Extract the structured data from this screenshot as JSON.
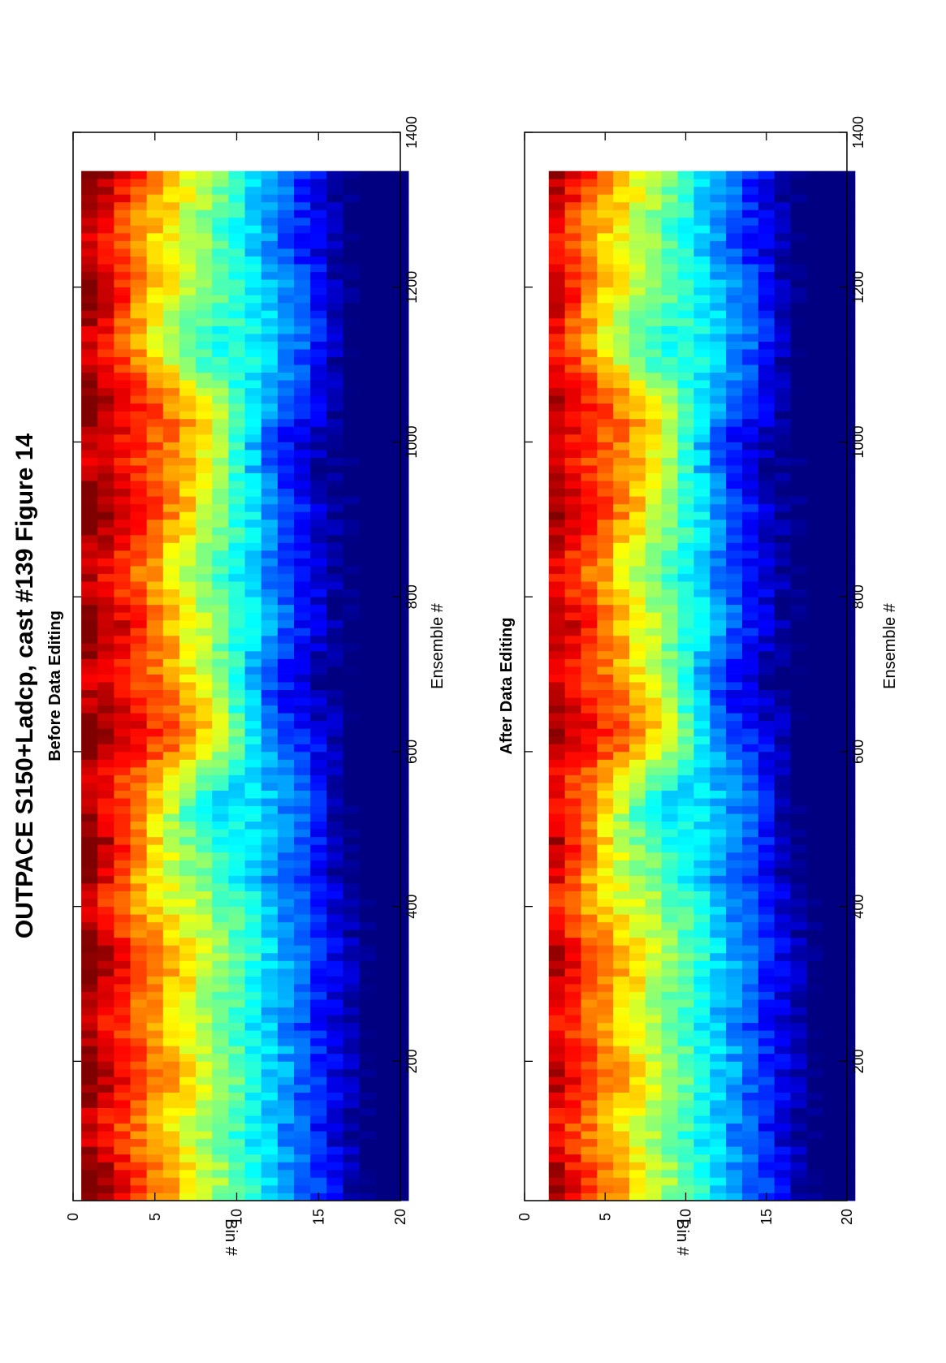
{
  "figure": {
    "title": "OUTPACE S150+Ladcp, cast #139  Figure 14"
  },
  "chart_data": [
    {
      "type": "heatmap",
      "title": "Before Data Editing",
      "xlabel": "Ensemble #",
      "ylabel": "Bin #",
      "xlim": [
        20,
        1400
      ],
      "ylim": [
        0,
        20
      ],
      "x_ticks": [
        200,
        400,
        600,
        800,
        1000,
        1200,
        1400
      ],
      "y_ticks": [
        0,
        5,
        10,
        15,
        20
      ],
      "x_range": [
        20,
        1350
      ],
      "bins": [
        1,
        20
      ],
      "first_bin_masked": false,
      "colormap": "jet",
      "grid": false,
      "orientation": "page rotated 90 degrees counter-clockwise"
    },
    {
      "type": "heatmap",
      "title": "After Data Editing",
      "xlabel": "Ensemble #",
      "ylabel": "Bin #",
      "xlim": [
        20,
        1400
      ],
      "ylim": [
        0,
        20
      ],
      "x_ticks": [
        200,
        400,
        600,
        800,
        1000,
        1200,
        1400
      ],
      "y_ticks": [
        0,
        5,
        10,
        15,
        20
      ],
      "x_range": [
        20,
        1350
      ],
      "bins": [
        2,
        20
      ],
      "first_bin_masked": true,
      "colormap": "jet",
      "grid": false,
      "orientation": "page rotated 90 degrees counter-clockwise"
    }
  ]
}
